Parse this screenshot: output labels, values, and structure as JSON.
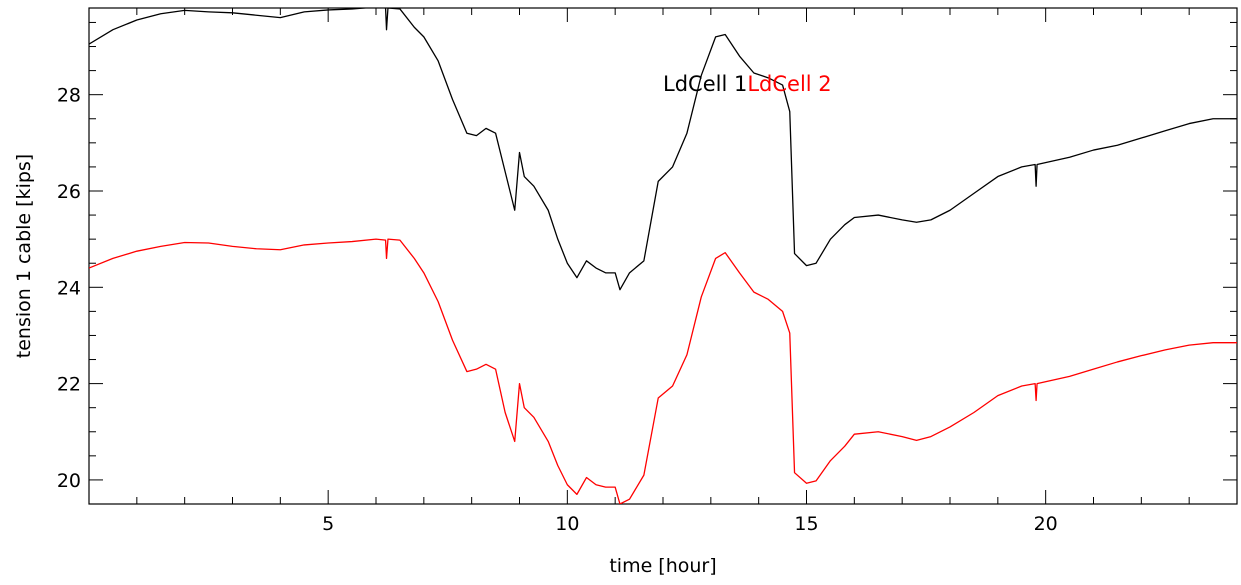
{
  "chart_data": {
    "type": "line",
    "title": "",
    "xlabel": "time [hour]",
    "ylabel": "tension 1 cable [kips]",
    "xlim": [
      0,
      24
    ],
    "ylim": [
      19.5,
      29.8
    ],
    "x_ticks": [
      5,
      10,
      15,
      20
    ],
    "y_ticks": [
      20,
      22,
      24,
      26,
      28
    ],
    "grid": false,
    "legend_position": "top-center",
    "series": [
      {
        "name": "LdCell 1",
        "color": "#000000",
        "points": [
          [
            0,
            29.05
          ],
          [
            0.5,
            29.35
          ],
          [
            1.0,
            29.55
          ],
          [
            1.5,
            29.68
          ],
          [
            2.0,
            29.75
          ],
          [
            2.5,
            29.72
          ],
          [
            3.0,
            29.7
          ],
          [
            3.5,
            29.65
          ],
          [
            4.0,
            29.6
          ],
          [
            4.5,
            29.72
          ],
          [
            5.0,
            29.76
          ],
          [
            5.5,
            29.78
          ],
          [
            6.0,
            29.82
          ],
          [
            6.2,
            29.8
          ],
          [
            6.22,
            29.35
          ],
          [
            6.25,
            29.8
          ],
          [
            6.5,
            29.78
          ],
          [
            6.8,
            29.4
          ],
          [
            7.0,
            29.2
          ],
          [
            7.3,
            28.7
          ],
          [
            7.6,
            27.9
          ],
          [
            7.9,
            27.2
          ],
          [
            8.1,
            27.15
          ],
          [
            8.3,
            27.3
          ],
          [
            8.5,
            27.2
          ],
          [
            8.7,
            26.4
          ],
          [
            8.9,
            25.6
          ],
          [
            9.0,
            26.8
          ],
          [
            9.1,
            26.3
          ],
          [
            9.3,
            26.1
          ],
          [
            9.6,
            25.6
          ],
          [
            9.8,
            25.0
          ],
          [
            10.0,
            24.5
          ],
          [
            10.2,
            24.2
          ],
          [
            10.4,
            24.55
          ],
          [
            10.6,
            24.4
          ],
          [
            10.8,
            24.3
          ],
          [
            11.0,
            24.3
          ],
          [
            11.1,
            23.95
          ],
          [
            11.3,
            24.3
          ],
          [
            11.6,
            24.55
          ],
          [
            11.9,
            26.2
          ],
          [
            12.2,
            26.5
          ],
          [
            12.5,
            27.2
          ],
          [
            12.8,
            28.4
          ],
          [
            13.1,
            29.2
          ],
          [
            13.3,
            29.25
          ],
          [
            13.6,
            28.8
          ],
          [
            13.9,
            28.45
          ],
          [
            14.2,
            28.35
          ],
          [
            14.5,
            28.2
          ],
          [
            14.65,
            27.65
          ],
          [
            14.75,
            24.7
          ],
          [
            15.0,
            24.45
          ],
          [
            15.2,
            24.5
          ],
          [
            15.5,
            25.0
          ],
          [
            15.8,
            25.3
          ],
          [
            16.0,
            25.45
          ],
          [
            16.5,
            25.5
          ],
          [
            17.0,
            25.4
          ],
          [
            17.3,
            25.35
          ],
          [
            17.6,
            25.4
          ],
          [
            18.0,
            25.6
          ],
          [
            18.5,
            25.95
          ],
          [
            19.0,
            26.3
          ],
          [
            19.5,
            26.5
          ],
          [
            19.78,
            26.55
          ],
          [
            19.8,
            26.1
          ],
          [
            19.82,
            26.55
          ],
          [
            20.5,
            26.7
          ],
          [
            21.0,
            26.85
          ],
          [
            21.5,
            26.95
          ],
          [
            22.0,
            27.1
          ],
          [
            22.5,
            27.25
          ],
          [
            23.0,
            27.4
          ],
          [
            23.5,
            27.5
          ],
          [
            24.0,
            27.5
          ]
        ]
      },
      {
        "name": "LdCell 2",
        "color": "#ff0000",
        "points": [
          [
            0,
            24.4
          ],
          [
            0.5,
            24.6
          ],
          [
            1.0,
            24.75
          ],
          [
            1.5,
            24.85
          ],
          [
            2.0,
            24.93
          ],
          [
            2.5,
            24.92
          ],
          [
            3.0,
            24.85
          ],
          [
            3.5,
            24.8
          ],
          [
            4.0,
            24.78
          ],
          [
            4.5,
            24.88
          ],
          [
            5.0,
            24.92
          ],
          [
            5.5,
            24.95
          ],
          [
            6.0,
            25.0
          ],
          [
            6.2,
            24.98
          ],
          [
            6.22,
            24.6
          ],
          [
            6.25,
            25.0
          ],
          [
            6.5,
            24.98
          ],
          [
            6.8,
            24.6
          ],
          [
            7.0,
            24.3
          ],
          [
            7.3,
            23.7
          ],
          [
            7.6,
            22.9
          ],
          [
            7.9,
            22.25
          ],
          [
            8.1,
            22.3
          ],
          [
            8.3,
            22.4
          ],
          [
            8.5,
            22.3
          ],
          [
            8.7,
            21.4
          ],
          [
            8.9,
            20.8
          ],
          [
            9.0,
            22.0
          ],
          [
            9.1,
            21.5
          ],
          [
            9.3,
            21.3
          ],
          [
            9.6,
            20.8
          ],
          [
            9.8,
            20.3
          ],
          [
            10.0,
            19.9
          ],
          [
            10.2,
            19.7
          ],
          [
            10.4,
            20.05
          ],
          [
            10.6,
            19.9
          ],
          [
            10.8,
            19.85
          ],
          [
            11.0,
            19.85
          ],
          [
            11.1,
            19.5
          ],
          [
            11.3,
            19.6
          ],
          [
            11.6,
            20.1
          ],
          [
            11.9,
            21.7
          ],
          [
            12.2,
            21.95
          ],
          [
            12.5,
            22.6
          ],
          [
            12.8,
            23.8
          ],
          [
            13.1,
            24.6
          ],
          [
            13.3,
            24.72
          ],
          [
            13.6,
            24.3
          ],
          [
            13.9,
            23.9
          ],
          [
            14.2,
            23.75
          ],
          [
            14.5,
            23.5
          ],
          [
            14.65,
            23.05
          ],
          [
            14.75,
            20.15
          ],
          [
            15.0,
            19.93
          ],
          [
            15.2,
            19.98
          ],
          [
            15.5,
            20.4
          ],
          [
            15.8,
            20.7
          ],
          [
            16.0,
            20.95
          ],
          [
            16.5,
            21.0
          ],
          [
            17.0,
            20.9
          ],
          [
            17.3,
            20.82
          ],
          [
            17.6,
            20.9
          ],
          [
            18.0,
            21.1
          ],
          [
            18.5,
            21.4
          ],
          [
            19.0,
            21.75
          ],
          [
            19.5,
            21.95
          ],
          [
            19.78,
            22.0
          ],
          [
            19.8,
            21.65
          ],
          [
            19.82,
            22.0
          ],
          [
            20.5,
            22.15
          ],
          [
            21.0,
            22.3
          ],
          [
            21.5,
            22.45
          ],
          [
            22.0,
            22.58
          ],
          [
            22.5,
            22.7
          ],
          [
            23.0,
            22.8
          ],
          [
            23.5,
            22.85
          ],
          [
            24.0,
            22.85
          ]
        ]
      }
    ]
  }
}
